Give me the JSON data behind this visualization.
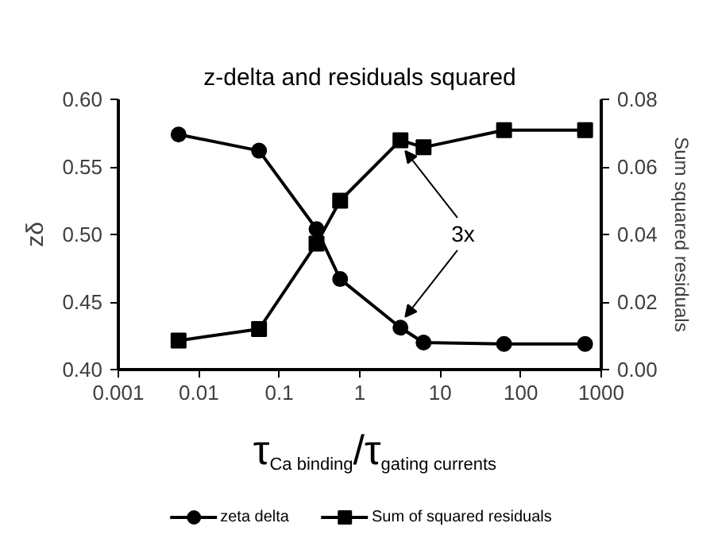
{
  "chart_data": {
    "type": "line",
    "title": "z-delta and residuals squared",
    "xlabel": "τ$_{Ca binding}$/τ$_{gating currents}$",
    "ylabel": "zδ",
    "y2label": "Sum squared residuals",
    "x": [
      0.0056,
      0.056,
      0.29,
      0.57,
      3.2,
      6.2,
      62,
      630
    ],
    "series": [
      {
        "name": "zeta delta",
        "color": "#000000",
        "marker": "circle",
        "values": [
          0.574,
          0.562,
          0.504,
          0.467,
          0.431,
          0.42,
          0.419,
          0.419
        ]
      },
      {
        "name": "Sum of squared residuals",
        "color": "#000000",
        "marker": "square",
        "axis": "y2",
        "values": [
          0.0086,
          0.012,
          0.0373,
          0.05,
          0.0679,
          0.0658,
          0.0709,
          0.0709
        ]
      }
    ],
    "log": "x",
    "xlim": [
      0.001,
      1000
    ],
    "xticks": [
      0.001,
      0.01,
      0.1,
      1,
      10,
      100,
      1000
    ],
    "ylim": [
      0.4,
      0.6
    ],
    "yticks": [
      {
        "value": 0.4,
        "label": "0.40"
      },
      {
        "value": 0.45,
        "label": "0.45"
      },
      {
        "value": 0.5,
        "label": "0.50"
      },
      {
        "value": 0.55,
        "label": "0.55"
      },
      {
        "value": 0.6,
        "label": "0.60"
      }
    ],
    "y2lim": [
      0,
      0.08
    ],
    "y2ticks": [
      {
        "value": 0,
        "label": "0.00"
      },
      {
        "value": 0.02,
        "label": "0.02"
      },
      {
        "value": 0.04,
        "label": "0.04"
      },
      {
        "value": 0.06,
        "label": "0.06"
      },
      {
        "value": 0.08,
        "label": "0.08"
      }
    ],
    "annotations": [
      {
        "text": "3x",
        "x": 3.2,
        "y": 0.431
      }
    ],
    "grid": false,
    "legend": "bottom"
  }
}
